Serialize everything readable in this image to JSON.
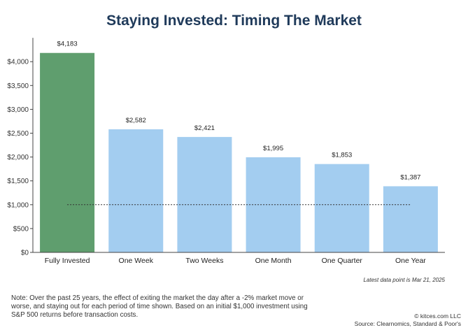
{
  "chart_data": {
    "type": "bar",
    "title": "Staying Invested: Timing The Market",
    "categories": [
      "Fully Invested",
      "One Week",
      "Two Weeks",
      "One Month",
      "One Quarter",
      "One Year"
    ],
    "values": [
      4183,
      2582,
      2421,
      1995,
      1853,
      1387
    ],
    "value_labels": [
      "$4,183",
      "$2,582",
      "$2,421",
      "$1,995",
      "$1,853",
      "$1,387"
    ],
    "y_ticks": [
      0,
      500,
      1000,
      1500,
      2000,
      2500,
      3000,
      3500,
      4000
    ],
    "y_tick_labels": [
      "$0",
      "$500",
      "$1,000",
      "$1,500",
      "$2,000",
      "$2,500",
      "$3,000",
      "$3,500",
      "$4,000"
    ],
    "ylim": [
      0,
      4500
    ],
    "reference_line": 1000,
    "grid": false,
    "legend": "none",
    "colors": {
      "highlight": "#5f9e6e",
      "bars": "#a3cdf0",
      "title": "#1f3a5a",
      "reference_line": "#333333"
    }
  },
  "notes": {
    "latest": "Latest data point is Mar 21, 2025",
    "footnote": "Note: Over the past 25 years, the effect of exiting the market the day after a -2% market move or worse, and staying out for each period of time shown. Based on an initial $1,000 investment using S&P 500 returns before transaction costs.",
    "credit": "© kitces.com LLC",
    "source": "Source: Clearnomics, Standard & Poor's"
  }
}
